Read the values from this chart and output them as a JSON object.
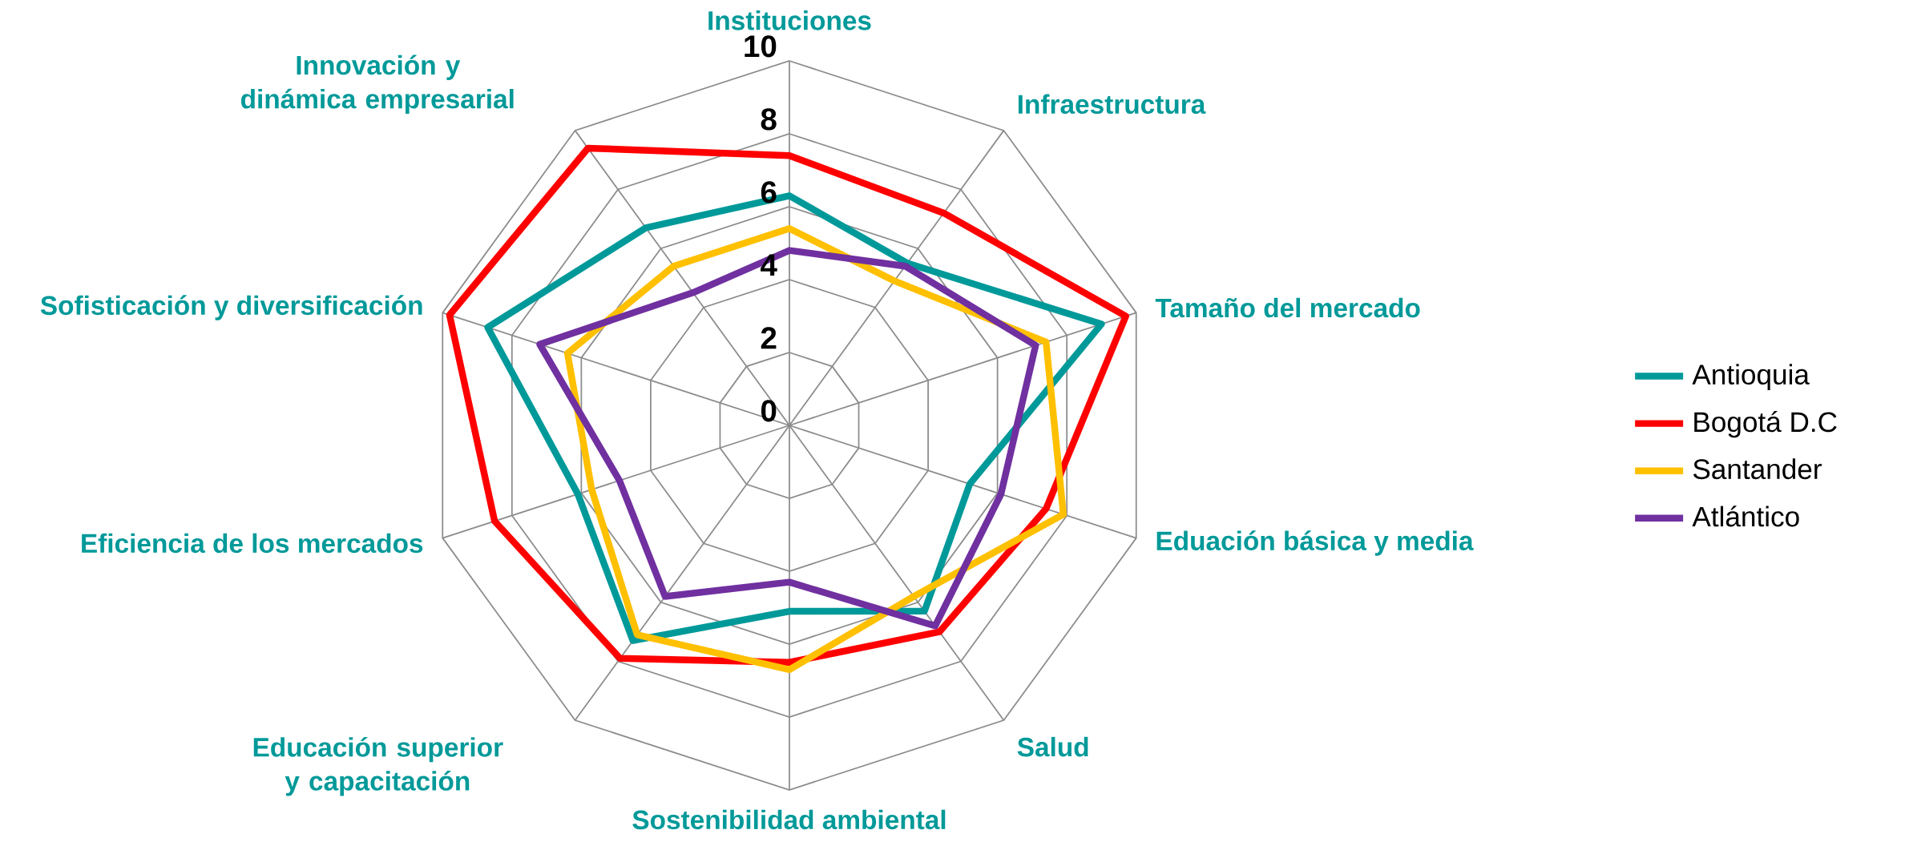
{
  "chart_data": {
    "type": "radar",
    "categories": [
      "Instituciones",
      "Infraestructura",
      "Tamaño del mercado",
      "Eduación básica y media",
      "Salud",
      "Sostenibilidad ambiental",
      "Educación superior y capacitación",
      "Eficiencia de los mercados",
      "Sofisticación y diversificación",
      "Innovación y dinámica empresarial"
    ],
    "series": [
      {
        "name": "Antioquia",
        "color": "#009999",
        "values": [
          6.3,
          5.5,
          9.0,
          5.2,
          6.3,
          5.1,
          7.3,
          6.1,
          8.7,
          6.7
        ]
      },
      {
        "name": "Bogotá D.C",
        "color": "#ff0000",
        "values": [
          7.4,
          7.2,
          9.7,
          7.4,
          7.0,
          6.5,
          7.9,
          8.5,
          9.8,
          9.4
        ]
      },
      {
        "name": "Santander",
        "color": "#ffc000",
        "values": [
          5.4,
          4.9,
          7.4,
          7.9,
          5.8,
          6.7,
          7.1,
          5.7,
          6.4,
          5.4
        ]
      },
      {
        "name": "Atlántico",
        "color": "#7030a0",
        "values": [
          4.8,
          5.4,
          7.1,
          6.1,
          6.8,
          4.3,
          5.8,
          4.9,
          7.2,
          4.5
        ]
      }
    ],
    "ylim": [
      0,
      10
    ],
    "yticks": [
      0,
      2,
      4,
      6,
      8,
      10
    ],
    "grid": true,
    "legend": "right"
  }
}
